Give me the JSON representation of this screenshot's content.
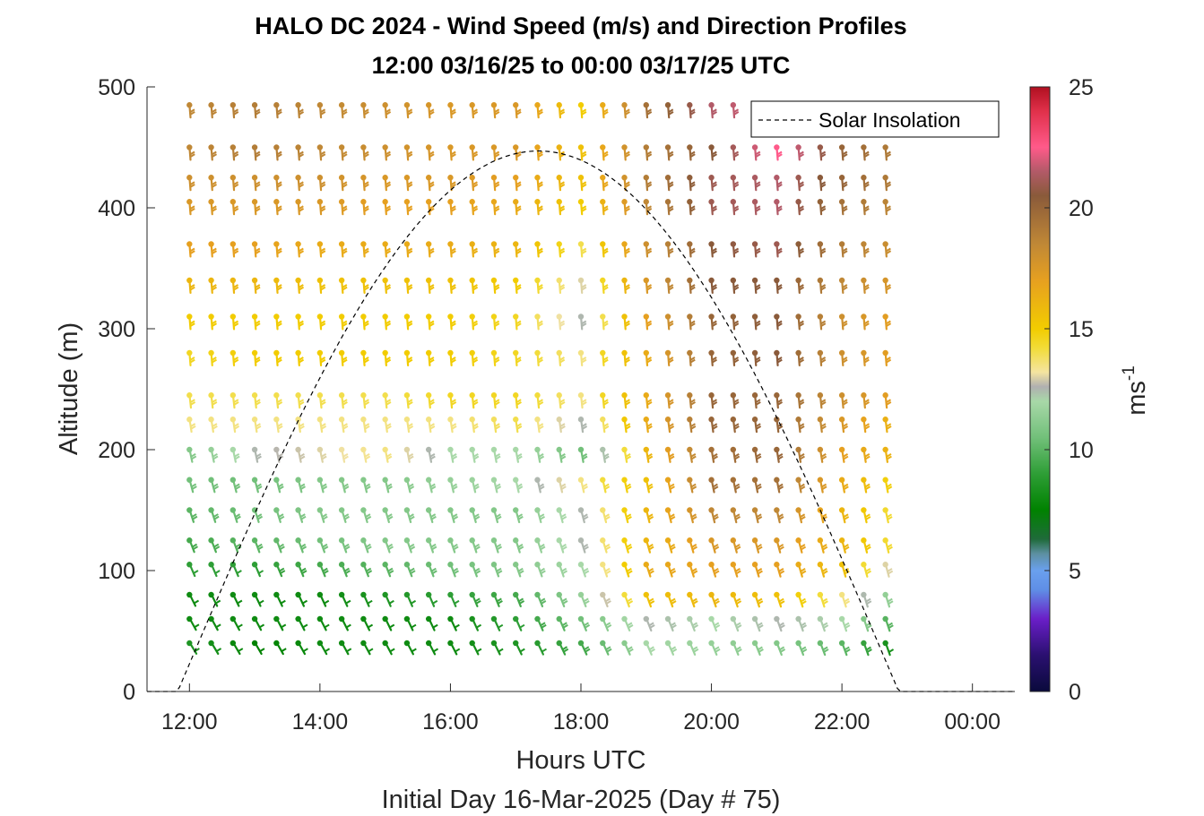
{
  "chart_data": {
    "type": "wind-barb-profile",
    "title": "HALO DC 2024 - Wind Speed (m/s) and Direction Profiles",
    "subtitle": "12:00 03/16/25 to 00:00 03/17/25  UTC",
    "xlabel": "Hours UTC",
    "xlabel2": "Initial Day 16-Mar-2025 (Day # 75)",
    "ylabel": "Altitude (m)",
    "colorbar_label": "ms",
    "colorbar_label_exp": "-1",
    "xlim": [
      11.35,
      24.65
    ],
    "ylim": [
      0,
      500
    ],
    "x_ticks": [
      {
        "value": 12,
        "label": "12:00"
      },
      {
        "value": 14,
        "label": "14:00"
      },
      {
        "value": 16,
        "label": "16:00"
      },
      {
        "value": 18,
        "label": "18:00"
      },
      {
        "value": 20,
        "label": "20:00"
      },
      {
        "value": 22,
        "label": "22:00"
      },
      {
        "value": 24,
        "label": "00:00"
      }
    ],
    "y_ticks": [
      {
        "value": 0,
        "label": "0"
      },
      {
        "value": 100,
        "label": "100"
      },
      {
        "value": 200,
        "label": "200"
      },
      {
        "value": 300,
        "label": "300"
      },
      {
        "value": 400,
        "label": "400"
      },
      {
        "value": 500,
        "label": "500"
      }
    ],
    "colorbar": {
      "min": 0,
      "max": 25,
      "ticks": [
        {
          "value": 0,
          "label": "0"
        },
        {
          "value": 5,
          "label": "5"
        },
        {
          "value": 10,
          "label": "10"
        },
        {
          "value": 15,
          "label": "15"
        },
        {
          "value": 20,
          "label": "20"
        },
        {
          "value": 25,
          "label": "25"
        }
      ],
      "stops": [
        {
          "v": 0,
          "c": "#0a0a3c"
        },
        {
          "v": 1.5,
          "c": "#2a1070"
        },
        {
          "v": 3,
          "c": "#6a1ec8"
        },
        {
          "v": 4.2,
          "c": "#5f8ee6"
        },
        {
          "v": 5,
          "c": "#6aa0ee"
        },
        {
          "v": 5.7,
          "c": "#5c8fa0"
        },
        {
          "v": 6.3,
          "c": "#1f6b3a"
        },
        {
          "v": 7.5,
          "c": "#008200"
        },
        {
          "v": 9,
          "c": "#2e9e36"
        },
        {
          "v": 10.5,
          "c": "#72c07a"
        },
        {
          "v": 12,
          "c": "#a8d8a8"
        },
        {
          "v": 12.6,
          "c": "#b0b0b0"
        },
        {
          "v": 13.2,
          "c": "#f4e4a0"
        },
        {
          "v": 14.2,
          "c": "#f2dc38"
        },
        {
          "v": 15,
          "c": "#f2cc00"
        },
        {
          "v": 17,
          "c": "#e6a020"
        },
        {
          "v": 18.5,
          "c": "#c08836"
        },
        {
          "v": 20.5,
          "c": "#8a5a3a"
        },
        {
          "v": 21.5,
          "c": "#b25a68"
        },
        {
          "v": 22.5,
          "c": "#ff5a8a"
        },
        {
          "v": 24,
          "c": "#e0304a"
        },
        {
          "v": 25,
          "c": "#b01020"
        }
      ]
    },
    "barbs": {
      "times_start": 12.0,
      "times_step": 0.333333,
      "times_count": 33,
      "altitudes": [
        40,
        60,
        80,
        105,
        125,
        150,
        175,
        200,
        225,
        245,
        280,
        310,
        340,
        370,
        405,
        425,
        450,
        485
      ],
      "speed_grid_hours": [
        12,
        13,
        14,
        15,
        16,
        17,
        18,
        19,
        20,
        21,
        22,
        22.8
      ],
      "speed_grid_altitudes": [
        40,
        60,
        80,
        105,
        125,
        150,
        175,
        200,
        225,
        245,
        280,
        310,
        340,
        370,
        405,
        425,
        450,
        485
      ],
      "speed_grid": [
        [
          8.5,
          7.5,
          8.0,
          8.0,
          8.0,
          8.5,
          9.5,
          12.0,
          11.5,
          11.0,
          10.0,
          8.0
        ],
        [
          8.0,
          8.0,
          8.0,
          8.0,
          8.0,
          9.0,
          10.5,
          12.5,
          12.0,
          12.5,
          12.0,
          9.5
        ],
        [
          8.0,
          8.0,
          8.0,
          8.5,
          9.0,
          9.5,
          11.5,
          15.5,
          16.0,
          15.5,
          13.5,
          11.0
        ],
        [
          9.0,
          9.0,
          9.5,
          10.0,
          10.5,
          11.0,
          12.0,
          16.5,
          17.0,
          17.0,
          15.5,
          12.5
        ],
        [
          9.5,
          10.0,
          10.5,
          11.0,
          11.0,
          11.0,
          12.5,
          16.0,
          17.5,
          17.5,
          16.0,
          14.0
        ],
        [
          10.0,
          10.5,
          11.0,
          11.0,
          11.0,
          11.0,
          12.5,
          16.0,
          18.5,
          18.5,
          16.0,
          14.0
        ],
        [
          10.5,
          10.5,
          11.0,
          11.0,
          11.5,
          12.0,
          13.5,
          15.5,
          19.5,
          19.5,
          16.5,
          14.5
        ],
        [
          11.0,
          12.5,
          13.0,
          13.5,
          12.0,
          12.0,
          10.5,
          16.0,
          19.5,
          20.0,
          17.0,
          16.0
        ],
        [
          13.5,
          13.5,
          13.5,
          13.5,
          13.5,
          14.0,
          12.5,
          16.5,
          20.0,
          20.0,
          17.5,
          16.0
        ],
        [
          14.0,
          14.0,
          14.0,
          14.0,
          14.5,
          14.5,
          13.5,
          16.5,
          20.0,
          20.0,
          18.0,
          17.0
        ],
        [
          14.5,
          15.0,
          15.0,
          15.0,
          15.0,
          14.5,
          13.5,
          16.5,
          20.0,
          20.5,
          18.0,
          17.0
        ],
        [
          15.0,
          15.0,
          15.0,
          15.0,
          15.0,
          14.5,
          12.5,
          17.0,
          20.0,
          20.5,
          18.0,
          17.0
        ],
        [
          16.0,
          16.0,
          15.5,
          15.5,
          15.5,
          15.0,
          13.0,
          17.5,
          20.5,
          20.5,
          18.5,
          17.5
        ],
        [
          17.0,
          17.0,
          16.5,
          16.5,
          16.5,
          16.0,
          14.0,
          18.0,
          20.5,
          21.0,
          19.0,
          18.0
        ],
        [
          17.5,
          17.5,
          17.5,
          17.0,
          17.0,
          16.5,
          15.0,
          18.5,
          21.0,
          21.5,
          19.5,
          18.5
        ],
        [
          18.0,
          18.0,
          18.0,
          17.5,
          17.5,
          17.0,
          15.5,
          19.0,
          21.0,
          21.5,
          20.0,
          19.0
        ],
        [
          18.5,
          19.0,
          18.5,
          18.0,
          17.5,
          17.5,
          15.5,
          19.0,
          20.5,
          22.5,
          20.0,
          19.0
        ],
        [
          18.5,
          19.0,
          18.5,
          18.0,
          17.5,
          17.5,
          15.0,
          19.5,
          21.5,
          22.0,
          20.5,
          19.5
        ]
      ]
    },
    "solar_insolation": {
      "name": "Solar Insolation",
      "rise": 11.82,
      "set": 22.87,
      "peak_time": 17.35,
      "peak": 447,
      "x_extent": [
        11.35,
        24.65
      ]
    },
    "legend": {
      "placement": "top-right",
      "entries": [
        "Solar Insolation"
      ]
    },
    "grid": false
  }
}
